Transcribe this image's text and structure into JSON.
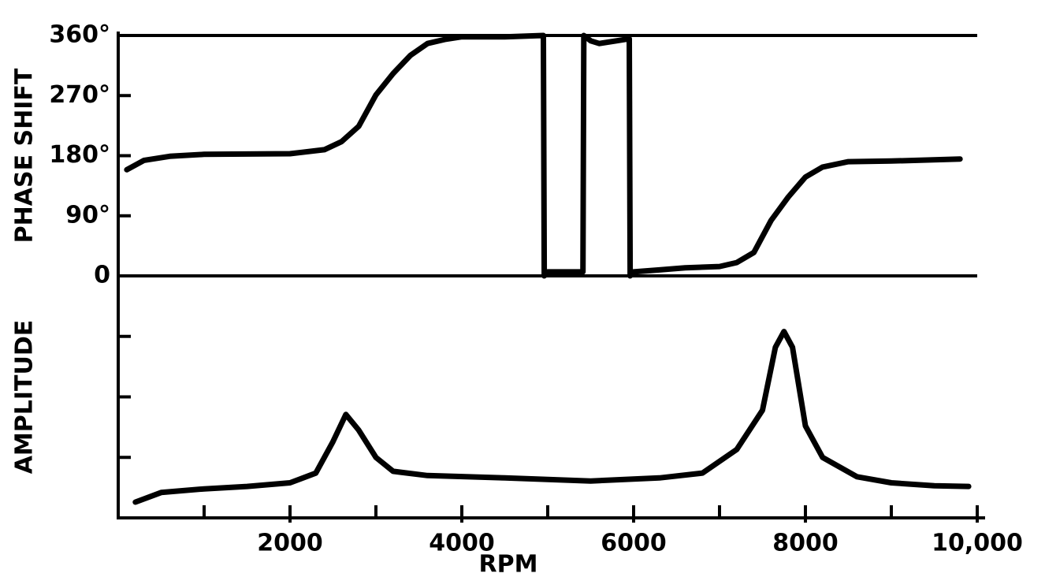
{
  "chart_data": [
    {
      "type": "line",
      "ylabel": "PHASE SHIFT",
      "color": "#000000",
      "xlim": [
        0,
        10000
      ],
      "ylim": [
        0,
        360
      ],
      "yticks": [
        0,
        {
          "value": 90,
          "label": "90°"
        },
        {
          "value": 180,
          "label": "180°"
        },
        {
          "value": 270,
          "label": "270°"
        },
        {
          "value": 360,
          "label": "360°"
        }
      ],
      "x": [
        100,
        300,
        600,
        1000,
        2000,
        2400,
        2600,
        2800,
        3000,
        3200,
        3400,
        3600,
        3800,
        4000,
        4500,
        4950,
        4960,
        5000,
        5200,
        5410,
        5420,
        5500,
        5600,
        5800,
        5950,
        5960,
        6000,
        6300,
        6600,
        7000,
        7200,
        7400,
        7600,
        7800,
        8000,
        8200,
        8500,
        9000,
        9800
      ],
      "values": [
        159,
        173,
        179,
        182,
        183,
        189,
        201,
        224,
        271,
        303,
        330,
        348,
        354,
        358,
        358,
        360,
        0,
        6,
        6,
        6,
        360,
        352,
        348,
        352,
        355,
        0,
        6,
        9,
        12,
        14,
        20,
        35,
        83,
        118,
        148,
        163,
        171,
        172,
        175
      ]
    },
    {
      "type": "line",
      "ylabel": "AMPLITUDE",
      "xlabel": "RPM",
      "color": "#000000",
      "xlim": [
        0,
        10000
      ],
      "ylim": [
        0,
        4
      ],
      "yticks": [
        1,
        2,
        3
      ],
      "show_y_tick_labels": false,
      "xticks": [
        2000,
        4000,
        6000,
        8000,
        {
          "value": 10000,
          "label": "10,000"
        }
      ],
      "xminorticks": [
        1000,
        3000,
        5000,
        7000,
        9000
      ],
      "x": [
        200,
        500,
        1000,
        1500,
        2000,
        2300,
        2500,
        2650,
        2800,
        3000,
        3200,
        3600,
        4500,
        5500,
        6300,
        6800,
        7200,
        7500,
        7650,
        7750,
        7850,
        8000,
        8200,
        8600,
        9000,
        9500,
        9900
      ],
      "values": [
        0.26,
        0.42,
        0.48,
        0.52,
        0.58,
        0.74,
        1.26,
        1.71,
        1.45,
        1.0,
        0.77,
        0.7,
        0.66,
        0.61,
        0.66,
        0.74,
        1.13,
        1.78,
        2.82,
        3.08,
        2.82,
        1.52,
        1.0,
        0.68,
        0.58,
        0.53,
        0.52
      ]
    }
  ]
}
